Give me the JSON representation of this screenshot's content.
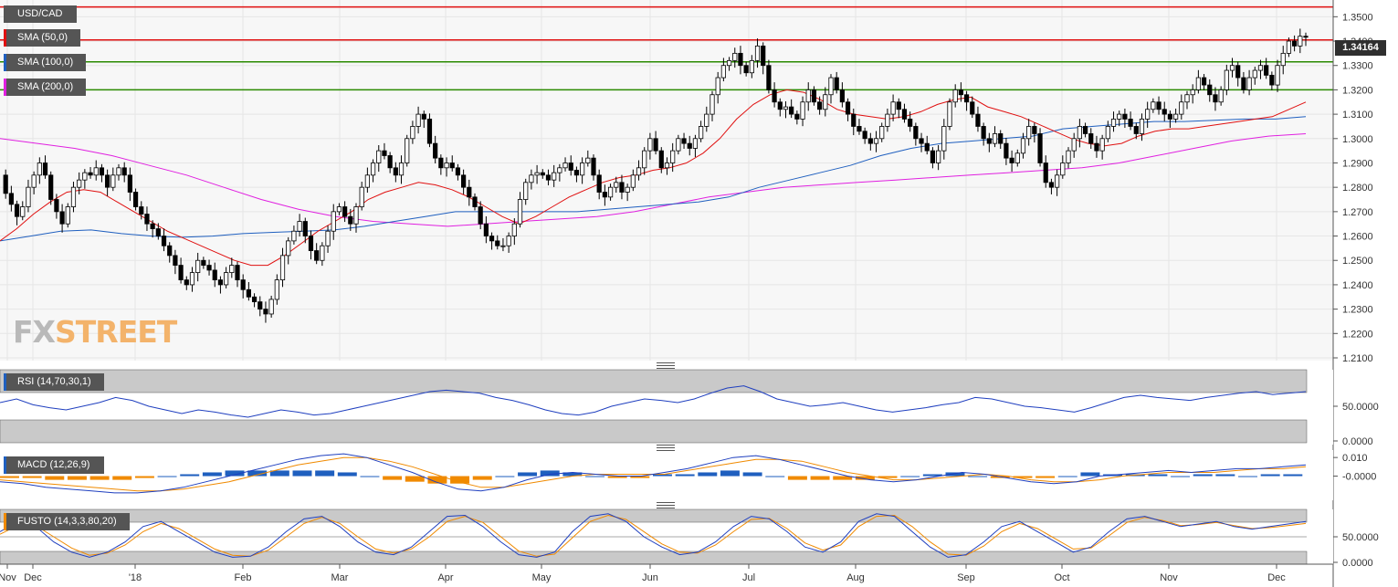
{
  "chart_data": {
    "type": "candlestick",
    "title": "USD/CAD",
    "last_price": "1.34164",
    "x_tick_labels": [
      "Nov",
      "Dec",
      "'18",
      "Feb",
      "Mar",
      "Apr",
      "May",
      "Jun",
      "Jul",
      "Aug",
      "Sep",
      "Oct",
      "Nov",
      "Dec"
    ],
    "price_axis": {
      "ticks": [
        "1.3500",
        "1.3400",
        "1.3300",
        "1.3200",
        "1.3100",
        "1.3000",
        "1.2900",
        "1.2800",
        "1.2700",
        "1.2600",
        "1.2500",
        "1.2400",
        "1.2300",
        "1.2200",
        "1.2100"
      ],
      "range": [
        1.21,
        1.355
      ]
    },
    "legend": [
      {
        "label": "USD/CAD",
        "color": "#555555"
      },
      {
        "label": "SMA (50,0)",
        "color": "#e01010"
      },
      {
        "label": "SMA (100,0)",
        "color": "#1f5fbf"
      },
      {
        "label": "SMA (200,0)",
        "color": "#e020e0"
      }
    ],
    "horizontal_levels": [
      {
        "value": 1.354,
        "color": "#e01010"
      },
      {
        "value": 1.3405,
        "color": "#e01010"
      },
      {
        "value": 1.3315,
        "color": "#2a8a00"
      },
      {
        "value": 1.32,
        "color": "#2a8a00"
      }
    ],
    "price_series": [
      1.285,
      1.2775,
      1.273,
      1.268,
      1.272,
      1.28,
      1.285,
      1.29,
      1.285,
      1.275,
      1.27,
      1.265,
      1.272,
      1.28,
      1.283,
      1.286,
      1.285,
      1.288,
      1.285,
      1.28,
      1.285,
      1.288,
      1.285,
      1.278,
      1.272,
      1.269,
      1.265,
      1.263,
      1.26,
      1.256,
      1.252,
      1.248,
      1.242,
      1.24,
      1.245,
      1.25,
      1.248,
      1.246,
      1.242,
      1.24,
      1.245,
      1.248,
      1.242,
      1.238,
      1.235,
      1.233,
      1.23,
      1.228,
      1.234,
      1.242,
      1.252,
      1.258,
      1.262,
      1.266,
      1.26,
      1.254,
      1.25,
      1.256,
      1.262,
      1.27,
      1.272,
      1.268,
      1.265,
      1.272,
      1.28,
      1.285,
      1.29,
      1.295,
      1.293,
      1.288,
      1.285,
      1.29,
      1.3,
      1.305,
      1.31,
      1.308,
      1.298,
      1.292,
      1.288,
      1.29,
      1.288,
      1.285,
      1.28,
      1.276,
      1.272,
      1.265,
      1.26,
      1.258,
      1.256,
      1.256,
      1.26,
      1.265,
      1.275,
      1.282,
      1.285,
      1.286,
      1.285,
      1.283,
      1.286,
      1.288,
      1.29,
      1.287,
      1.285,
      1.29,
      1.292,
      1.285,
      1.278,
      1.276,
      1.28,
      1.282,
      1.278,
      1.28,
      1.285,
      1.288,
      1.295,
      1.3,
      1.295,
      1.288,
      1.29,
      1.295,
      1.3,
      1.298,
      1.296,
      1.3,
      1.305,
      1.31,
      1.318,
      1.325,
      1.33,
      1.332,
      1.335,
      1.33,
      1.327,
      1.332,
      1.338,
      1.33,
      1.32,
      1.315,
      1.312,
      1.313,
      1.31,
      1.308,
      1.315,
      1.32,
      1.315,
      1.312,
      1.318,
      1.325,
      1.32,
      1.315,
      1.31,
      1.305,
      1.303,
      1.3,
      1.298,
      1.3,
      1.305,
      1.31,
      1.315,
      1.312,
      1.308,
      1.305,
      1.3,
      1.298,
      1.295,
      1.29,
      1.295,
      1.305,
      1.315,
      1.32,
      1.318,
      1.315,
      1.31,
      1.305,
      1.3,
      1.298,
      1.302,
      1.298,
      1.292,
      1.29,
      1.294,
      1.3,
      1.305,
      1.302,
      1.29,
      1.282,
      1.28,
      1.285,
      1.29,
      1.295,
      1.3,
      1.305,
      1.302,
      1.298,
      1.295,
      1.3,
      1.305,
      1.308,
      1.31,
      1.308,
      1.305,
      1.302,
      1.308,
      1.312,
      1.315,
      1.312,
      1.31,
      1.308,
      1.31,
      1.315,
      1.318,
      1.32,
      1.325,
      1.322,
      1.318,
      1.315,
      1.32,
      1.328,
      1.33,
      1.325,
      1.32,
      1.325,
      1.328,
      1.33,
      1.326,
      1.322,
      1.33,
      1.335,
      1.34,
      1.338,
      1.342,
      1.3416
    ],
    "sma_50": [
      1.258,
      1.263,
      1.269,
      1.274,
      1.278,
      1.279,
      1.278,
      1.274,
      1.27,
      1.266,
      1.262,
      1.259,
      1.256,
      1.253,
      1.25,
      1.248,
      1.248,
      1.252,
      1.257,
      1.262,
      1.266,
      1.27,
      1.275,
      1.278,
      1.28,
      1.282,
      1.281,
      1.279,
      1.276,
      1.272,
      1.268,
      1.265,
      1.268,
      1.272,
      1.276,
      1.279,
      1.282,
      1.284,
      1.285,
      1.287,
      1.288,
      1.29,
      1.294,
      1.3,
      1.308,
      1.314,
      1.318,
      1.32,
      1.319,
      1.316,
      1.312,
      1.31,
      1.309,
      1.308,
      1.309,
      1.311,
      1.314,
      1.316,
      1.317,
      1.313,
      1.311,
      1.309,
      1.306,
      1.303,
      1.3,
      1.298,
      1.297,
      1.298,
      1.301,
      1.303,
      1.304,
      1.304,
      1.305,
      1.306,
      1.307,
      1.308,
      1.309,
      1.312,
      1.315
    ],
    "sma_100": [
      1.258,
      1.26,
      1.262,
      1.2625,
      1.261,
      1.26,
      1.2595,
      1.26,
      1.261,
      1.2615,
      1.262,
      1.2625,
      1.264,
      1.266,
      1.268,
      1.27,
      1.27,
      1.27,
      1.27,
      1.27,
      1.271,
      1.272,
      1.273,
      1.274,
      1.276,
      1.28,
      1.283,
      1.286,
      1.289,
      1.293,
      1.296,
      1.298,
      1.299,
      1.3,
      1.301,
      1.304,
      1.305,
      1.306,
      1.307,
      1.307,
      1.3075,
      1.308,
      1.308,
      1.309
    ],
    "sma_200": [
      1.3,
      1.298,
      1.296,
      1.293,
      1.289,
      1.285,
      1.28,
      1.275,
      1.271,
      1.268,
      1.266,
      1.265,
      1.264,
      1.265,
      1.266,
      1.267,
      1.268,
      1.27,
      1.273,
      1.276,
      1.278,
      1.28,
      1.281,
      1.282,
      1.283,
      1.284,
      1.285,
      1.286,
      1.287,
      1.288,
      1.29,
      1.293,
      1.296,
      1.299,
      1.301,
      1.302
    ],
    "rsi": {
      "label": "RSI (14,70,30,1)",
      "ticks": [
        "50.0000",
        "0.0000"
      ],
      "range": [
        0,
        100
      ],
      "values": [
        55,
        60,
        52,
        48,
        45,
        50,
        55,
        62,
        58,
        50,
        45,
        40,
        45,
        42,
        38,
        35,
        40,
        45,
        42,
        38,
        40,
        45,
        50,
        55,
        60,
        65,
        70,
        72,
        70,
        68,
        62,
        58,
        52,
        45,
        40,
        38,
        42,
        50,
        55,
        60,
        58,
        55,
        60,
        68,
        75,
        78,
        70,
        60,
        55,
        50,
        52,
        55,
        50,
        45,
        42,
        45,
        48,
        52,
        55,
        62,
        60,
        55,
        50,
        48,
        45,
        42,
        48,
        55,
        62,
        65,
        62,
        60,
        58,
        62,
        65,
        68,
        70,
        66,
        68,
        70
      ]
    },
    "macd": {
      "label": "MACD (12,26,9)",
      "ticks": [
        "0.010",
        "-0.0000"
      ],
      "range": [
        -0.012,
        0.014
      ],
      "macd_line": [
        -0.003,
        -0.004,
        -0.006,
        -0.007,
        -0.008,
        -0.009,
        -0.009,
        -0.008,
        -0.006,
        -0.003,
        0.0,
        0.003,
        0.006,
        0.009,
        0.011,
        0.012,
        0.01,
        0.006,
        0.002,
        -0.003,
        -0.007,
        -0.008,
        -0.006,
        -0.002,
        0.001,
        0.002,
        0.001,
        0.0,
        0.0,
        0.002,
        0.004,
        0.007,
        0.01,
        0.011,
        0.009,
        0.006,
        0.003,
        0.0,
        -0.002,
        -0.003,
        -0.002,
        0.0,
        0.002,
        0.001,
        -0.001,
        -0.003,
        -0.004,
        -0.003,
        0.0,
        0.001,
        0.002,
        0.003,
        0.002,
        0.003,
        0.004,
        0.004,
        0.005,
        0.006
      ],
      "signal_line": [
        -0.002,
        -0.003,
        -0.004,
        -0.005,
        -0.006,
        -0.007,
        -0.008,
        -0.008,
        -0.007,
        -0.005,
        -0.003,
        0.0,
        0.003,
        0.006,
        0.008,
        0.01,
        0.01,
        0.008,
        0.005,
        0.001,
        -0.003,
        -0.006,
        -0.006,
        -0.004,
        -0.002,
        0.0,
        0.001,
        0.001,
        0.001,
        0.001,
        0.003,
        0.005,
        0.007,
        0.009,
        0.009,
        0.008,
        0.005,
        0.002,
        0.0,
        -0.002,
        -0.002,
        -0.001,
        0.0,
        0.001,
        0.0,
        -0.002,
        -0.003,
        -0.003,
        -0.002,
        0.0,
        0.001,
        0.002,
        0.002,
        0.002,
        0.003,
        0.004,
        0.004,
        0.005
      ],
      "histogram": [
        -0.001,
        -0.001,
        -0.002,
        -0.002,
        -0.002,
        -0.002,
        -0.001,
        0.0,
        0.001,
        0.002,
        0.003,
        0.003,
        0.003,
        0.003,
        0.003,
        0.002,
        0.0,
        -0.002,
        -0.003,
        -0.004,
        -0.004,
        -0.002,
        0.0,
        0.002,
        0.003,
        0.002,
        0.0,
        -0.001,
        -0.001,
        0.001,
        0.001,
        0.002,
        0.003,
        0.002,
        0.0,
        -0.002,
        -0.002,
        -0.002,
        -0.002,
        -0.001,
        0.0,
        0.001,
        0.002,
        0.0,
        -0.001,
        -0.001,
        -0.001,
        0.0,
        0.002,
        0.001,
        0.001,
        0.001,
        0.0,
        0.001,
        0.001,
        0.0,
        0.001,
        0.001
      ]
    },
    "fusto": {
      "label": "FUSTO (14,3,3,80,20)",
      "ticks": [
        "50.0000",
        "0.0000"
      ],
      "range": [
        0,
        100
      ],
      "k_line": [
        60,
        80,
        70,
        40,
        20,
        10,
        20,
        40,
        70,
        80,
        60,
        40,
        20,
        10,
        12,
        30,
        60,
        85,
        90,
        70,
        40,
        20,
        15,
        30,
        60,
        90,
        92,
        70,
        40,
        15,
        10,
        20,
        60,
        90,
        95,
        80,
        50,
        30,
        15,
        20,
        40,
        70,
        90,
        85,
        60,
        30,
        20,
        40,
        80,
        95,
        90,
        60,
        30,
        10,
        15,
        40,
        70,
        80,
        60,
        40,
        20,
        30,
        60,
        85,
        90,
        80,
        70,
        75,
        80,
        70,
        65,
        70,
        75,
        80
      ],
      "d_line": [
        55,
        72,
        72,
        50,
        28,
        14,
        18,
        34,
        60,
        76,
        66,
        46,
        26,
        14,
        12,
        24,
        50,
        76,
        88,
        76,
        50,
        26,
        18,
        26,
        50,
        80,
        90,
        78,
        50,
        22,
        12,
        16,
        48,
        80,
        92,
        84,
        60,
        36,
        20,
        18,
        34,
        60,
        84,
        86,
        66,
        38,
        24,
        34,
        70,
        90,
        92,
        70,
        40,
        16,
        14,
        32,
        60,
        76,
        66,
        46,
        26,
        28,
        52,
        78,
        88,
        82,
        72,
        74,
        78,
        72,
        66,
        68,
        72,
        76
      ]
    }
  }
}
